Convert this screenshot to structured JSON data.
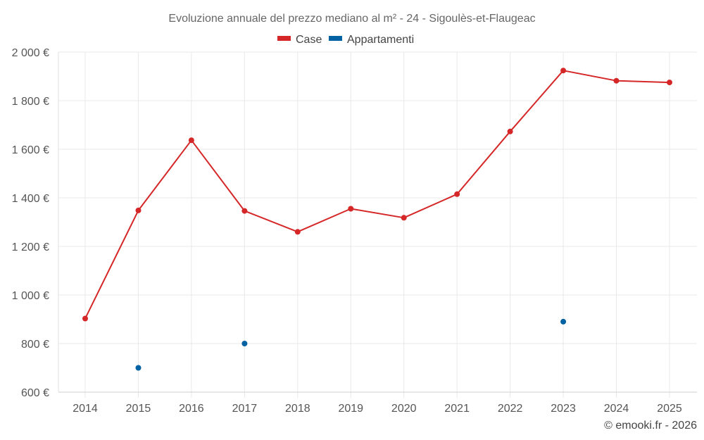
{
  "chart_data": {
    "type": "line",
    "title": "Evoluzione annuale del prezzo mediano al m² - 24 - Sigoulès-et-Flaugeac",
    "x": [
      "2014",
      "2015",
      "2016",
      "2017",
      "2018",
      "2019",
      "2020",
      "2021",
      "2022",
      "2023",
      "2024",
      "2025"
    ],
    "ylim": [
      600,
      2000
    ],
    "yticks": [
      600,
      800,
      1000,
      1200,
      1400,
      1600,
      1800,
      2000
    ],
    "ytick_labels": [
      "600 €",
      "800 €",
      "1 000 €",
      "1 200 €",
      "1 400 €",
      "1 600 €",
      "1 800 €",
      "2 000 €"
    ],
    "xlabel": "",
    "ylabel": "",
    "grid": true,
    "legend_position": "top-center",
    "series": [
      {
        "name": "Case",
        "color": "#d62728",
        "values": [
          903,
          1348,
          1637,
          1346,
          1260,
          1355,
          1318,
          1415,
          1673,
          1924,
          1882,
          1875
        ]
      },
      {
        "name": "Appartamenti",
        "color": "#0062a3",
        "values": [
          null,
          700,
          null,
          800,
          null,
          null,
          null,
          null,
          null,
          890,
          null,
          null
        ]
      }
    ],
    "credit": "© emooki.fr - 2026"
  }
}
